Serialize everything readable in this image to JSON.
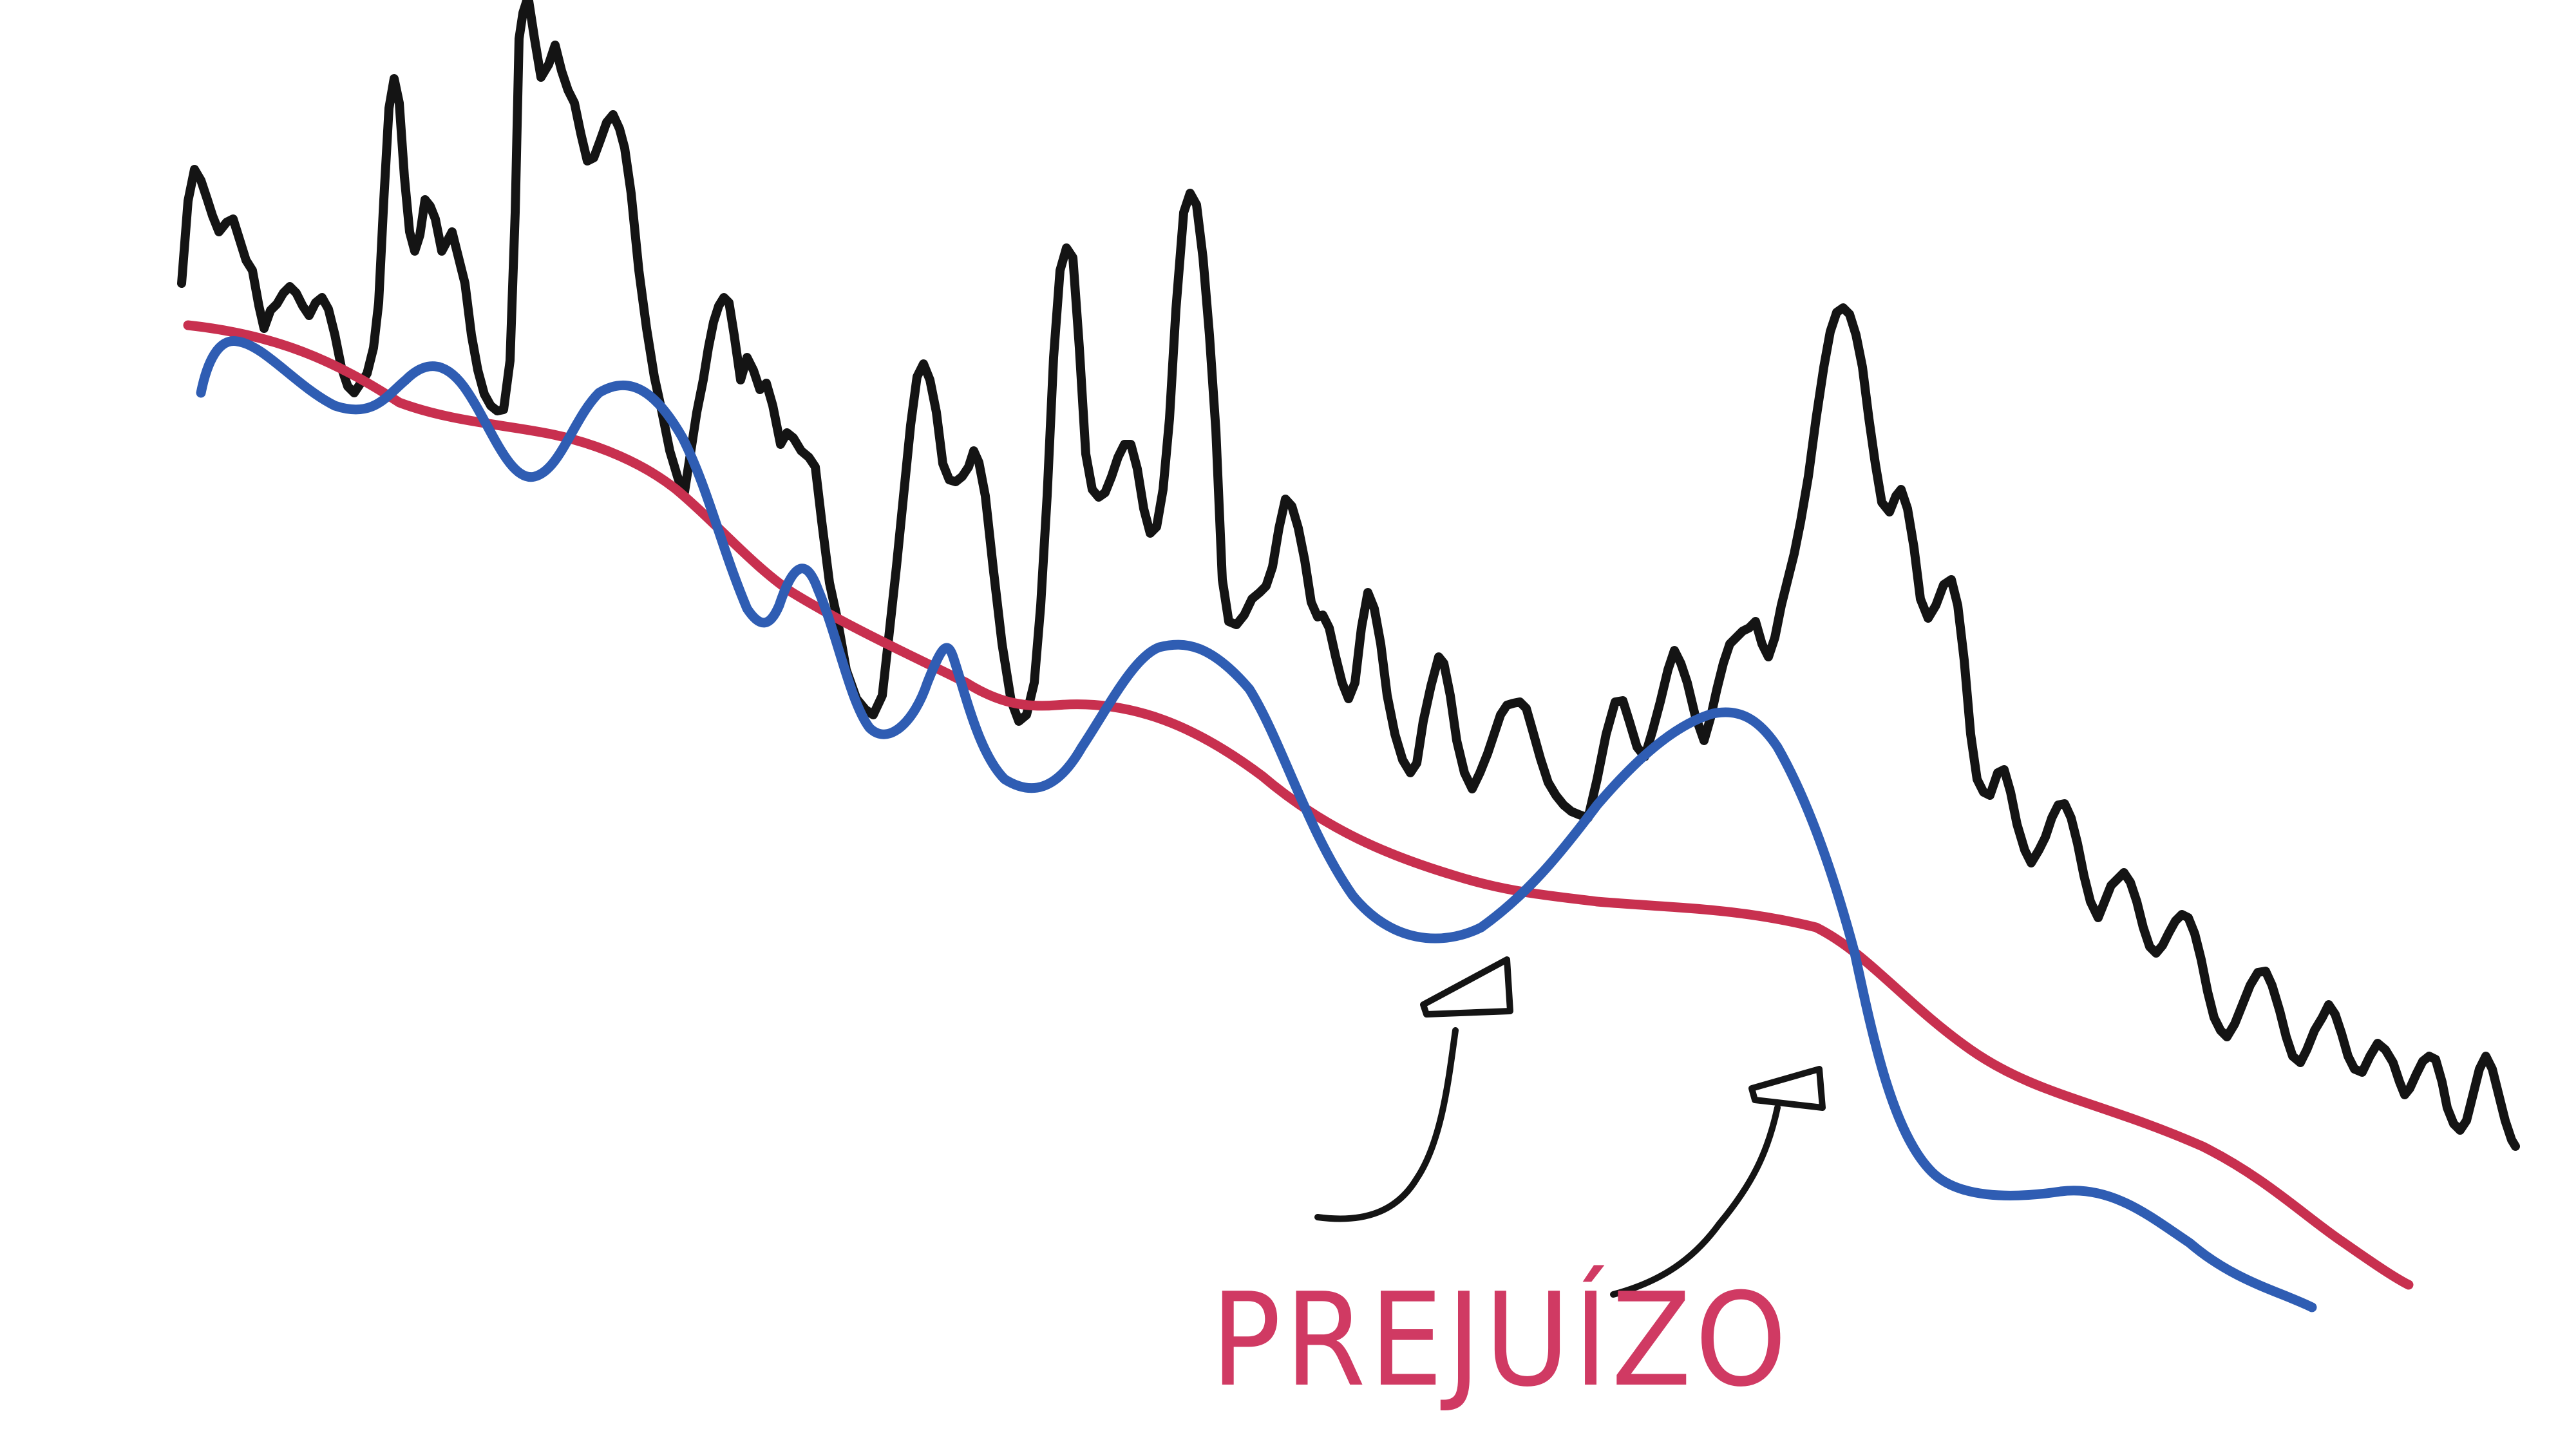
{
  "colors": {
    "price": "#141414",
    "slow_average": "#c8304f",
    "fast_average": "#2f5db3",
    "annotation": "#d03a63",
    "background": "#ffffff"
  },
  "annotation": {
    "label": "PREJUÍZO",
    "arrows": [
      "arrow-to-first-crossing",
      "arrow-to-second-crossing"
    ]
  },
  "lines": [
    {
      "name": "price-line",
      "color_key": "price"
    },
    {
      "name": "slow-average-line",
      "color_key": "slow_average"
    },
    {
      "name": "fast-average-line",
      "color_key": "fast_average"
    }
  ]
}
